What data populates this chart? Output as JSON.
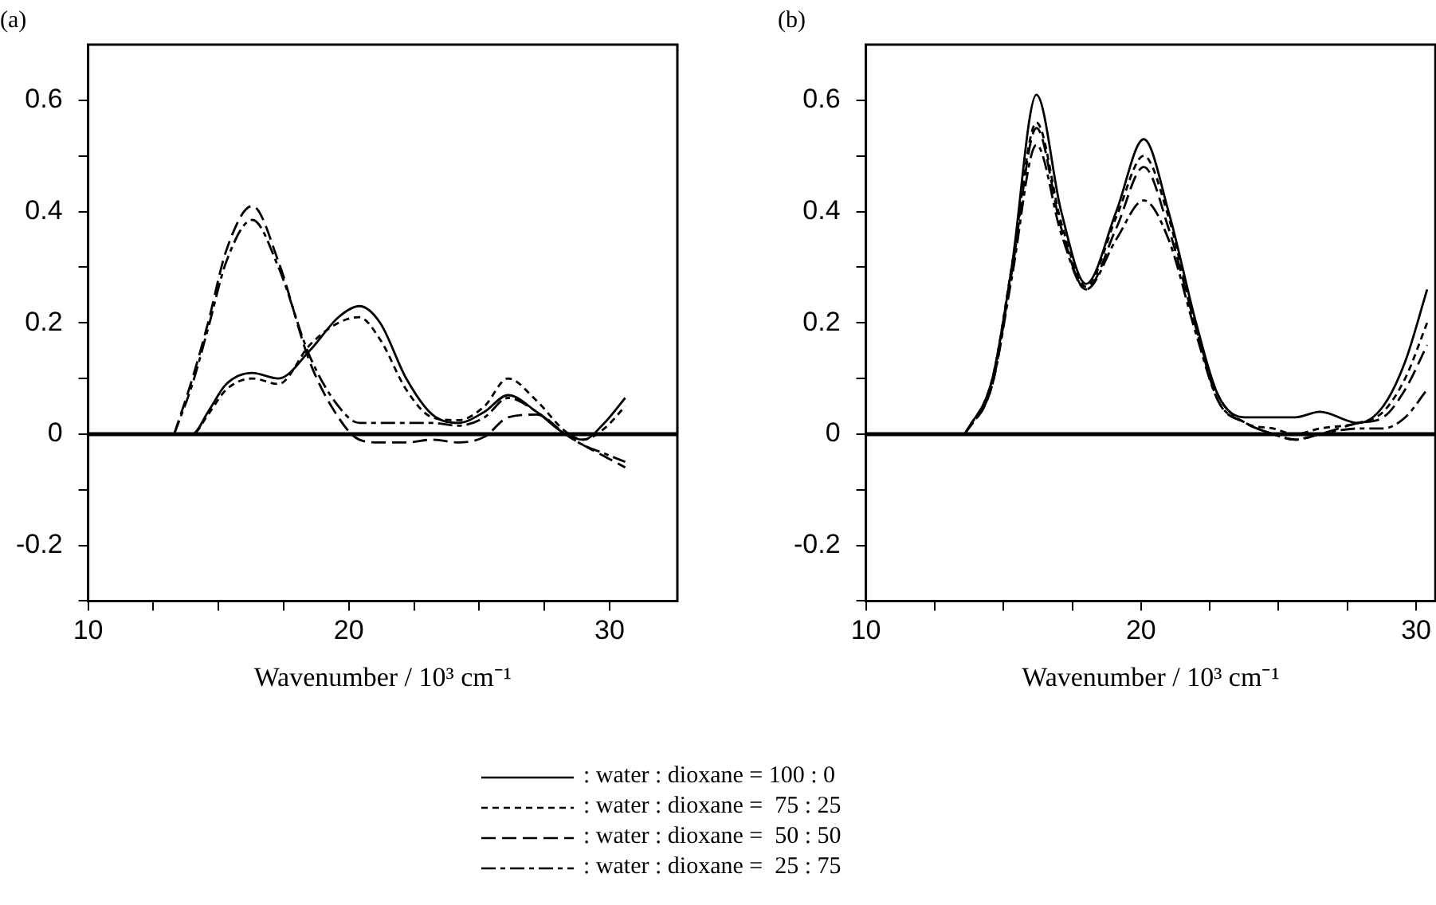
{
  "chart_data": [
    {
      "type": "line",
      "title": "(a)",
      "xlabel": "Wavenumber / 10³ cm⁻¹",
      "grid": false,
      "legend": "bottom",
      "marker": "none",
      "xlim": [
        10,
        32.6
      ],
      "ylim": [
        -0.3,
        0.7
      ],
      "xticks": [
        10,
        {
          "value": 12.5,
          "label": null
        },
        {
          "value": 15,
          "label": null
        },
        {
          "value": 17.5,
          "label": null
        },
        20,
        {
          "value": 22.5,
          "label": null
        },
        {
          "value": 25,
          "label": null
        },
        {
          "value": 27.5,
          "label": null
        },
        30
      ],
      "yticks": [
        {
          "value": -0.3,
          "label": null
        },
        -0.2,
        {
          "value": -0.1,
          "label": null
        },
        0,
        {
          "value": 0.1,
          "label": null
        },
        0.2,
        {
          "value": 0.3,
          "label": null
        },
        0.4,
        {
          "value": 0.5,
          "label": null
        },
        0.6
      ],
      "ref_lines": [
        {
          "axis": "y",
          "value": 0,
          "color": "#000000"
        }
      ],
      "x": [
        13.3,
        14.0,
        14.6,
        15.3,
        16.3,
        17.3,
        18.5,
        19.6,
        20.4,
        21.2,
        22.2,
        23.2,
        24.2,
        25.2,
        26.1,
        27.2,
        28.3,
        29.0,
        29.8,
        30.6
      ],
      "series": [
        {
          "name": ": water : dioxane = 100 : 0",
          "color": "#000000",
          "line_style": "solid",
          "values": [
            0,
            0,
            0.04,
            0.09,
            0.11,
            0.1,
            0.15,
            0.21,
            0.23,
            0.2,
            0.1,
            0.035,
            0.02,
            0.04,
            0.07,
            0.04,
            0,
            -0.01,
            0.02,
            0.065
          ]
        },
        {
          "name": ": water : dioxane =  75 : 25",
          "color": "#000000",
          "line_style": "dashed",
          "values": [
            0,
            0,
            0.035,
            0.08,
            0.1,
            0.09,
            0.16,
            0.2,
            0.21,
            0.17,
            0.08,
            0.03,
            0.025,
            0.05,
            0.1,
            0.06,
            0.005,
            -0.01,
            0.01,
            0.05
          ]
        },
        {
          "name": ": water : dioxane =  50 : 50",
          "color": "#000000",
          "line_style": "longdash",
          "values": [
            0,
            0.1,
            0.2,
            0.33,
            0.41,
            0.31,
            0.13,
            0.03,
            -0.01,
            -0.015,
            -0.015,
            -0.01,
            -0.015,
            -0.005,
            0.03,
            0.035,
            0,
            -0.02,
            -0.04,
            -0.06
          ]
        },
        {
          "name": ": water : dioxane =  25 : 75",
          "color": "#000000",
          "line_style": "dashdot",
          "values": [
            0,
            0.09,
            0.19,
            0.31,
            0.385,
            0.3,
            0.14,
            0.05,
            0.02,
            0.02,
            0.02,
            0.02,
            0.015,
            0.03,
            0.065,
            0.04,
            0,
            -0.02,
            -0.035,
            -0.05
          ]
        }
      ]
    },
    {
      "type": "line",
      "title": "(b)",
      "xlabel": "Wavenumber / 10³ cm⁻¹",
      "grid": false,
      "marker": "none",
      "xlim": [
        10,
        30.7
      ],
      "ylim": [
        -0.3,
        0.7
      ],
      "xticks": [
        10,
        {
          "value": 12.5,
          "label": null
        },
        {
          "value": 15,
          "label": null
        },
        {
          "value": 17.5,
          "label": null
        },
        20,
        {
          "value": 22.5,
          "label": null
        },
        {
          "value": 25,
          "label": null
        },
        {
          "value": 27.5,
          "label": null
        },
        30
      ],
      "yticks": [
        {
          "value": -0.3,
          "label": null
        },
        -0.2,
        {
          "value": -0.1,
          "label": null
        },
        0,
        {
          "value": 0.1,
          "label": null
        },
        0.2,
        {
          "value": 0.3,
          "label": null
        },
        0.4,
        {
          "value": 0.5,
          "label": null
        },
        0.6
      ],
      "ref_lines": [
        {
          "axis": "y",
          "value": 0,
          "color": "#000000"
        }
      ],
      "x": [
        13.6,
        14.6,
        15.3,
        16.2,
        17.1,
        18.0,
        19.1,
        20.1,
        21.0,
        22.0,
        22.8,
        23.8,
        24.8,
        25.6,
        26.5,
        27.9,
        28.8,
        29.6,
        30.4
      ],
      "series": [
        {
          "color": "#000000",
          "line_style": "solid",
          "values": [
            0,
            0.1,
            0.3,
            0.61,
            0.4,
            0.27,
            0.4,
            0.53,
            0.4,
            0.2,
            0.07,
            0.03,
            0.03,
            0.03,
            0.04,
            0.02,
            0.05,
            0.13,
            0.26
          ]
        },
        {
          "color": "#000000",
          "line_style": "dashed",
          "values": [
            0,
            0.1,
            0.3,
            0.56,
            0.38,
            0.265,
            0.39,
            0.5,
            0.39,
            0.19,
            0.07,
            0.02,
            0.01,
            0,
            0.01,
            0.02,
            0.04,
            0.1,
            0.2
          ]
        },
        {
          "color": "#000000",
          "line_style": "longdash",
          "values": [
            0,
            0.09,
            0.29,
            0.55,
            0.37,
            0.26,
            0.37,
            0.48,
            0.37,
            0.19,
            0.06,
            0.02,
            0,
            -0.01,
            0,
            0.02,
            0.03,
            0.08,
            0.16
          ]
        },
        {
          "color": "#000000",
          "line_style": "dashdot",
          "values": [
            0,
            0.09,
            0.28,
            0.52,
            0.36,
            0.26,
            0.35,
            0.42,
            0.35,
            0.18,
            0.06,
            0.02,
            0,
            -0.01,
            0,
            0.01,
            0.01,
            0.03,
            0.08
          ]
        }
      ]
    }
  ]
}
